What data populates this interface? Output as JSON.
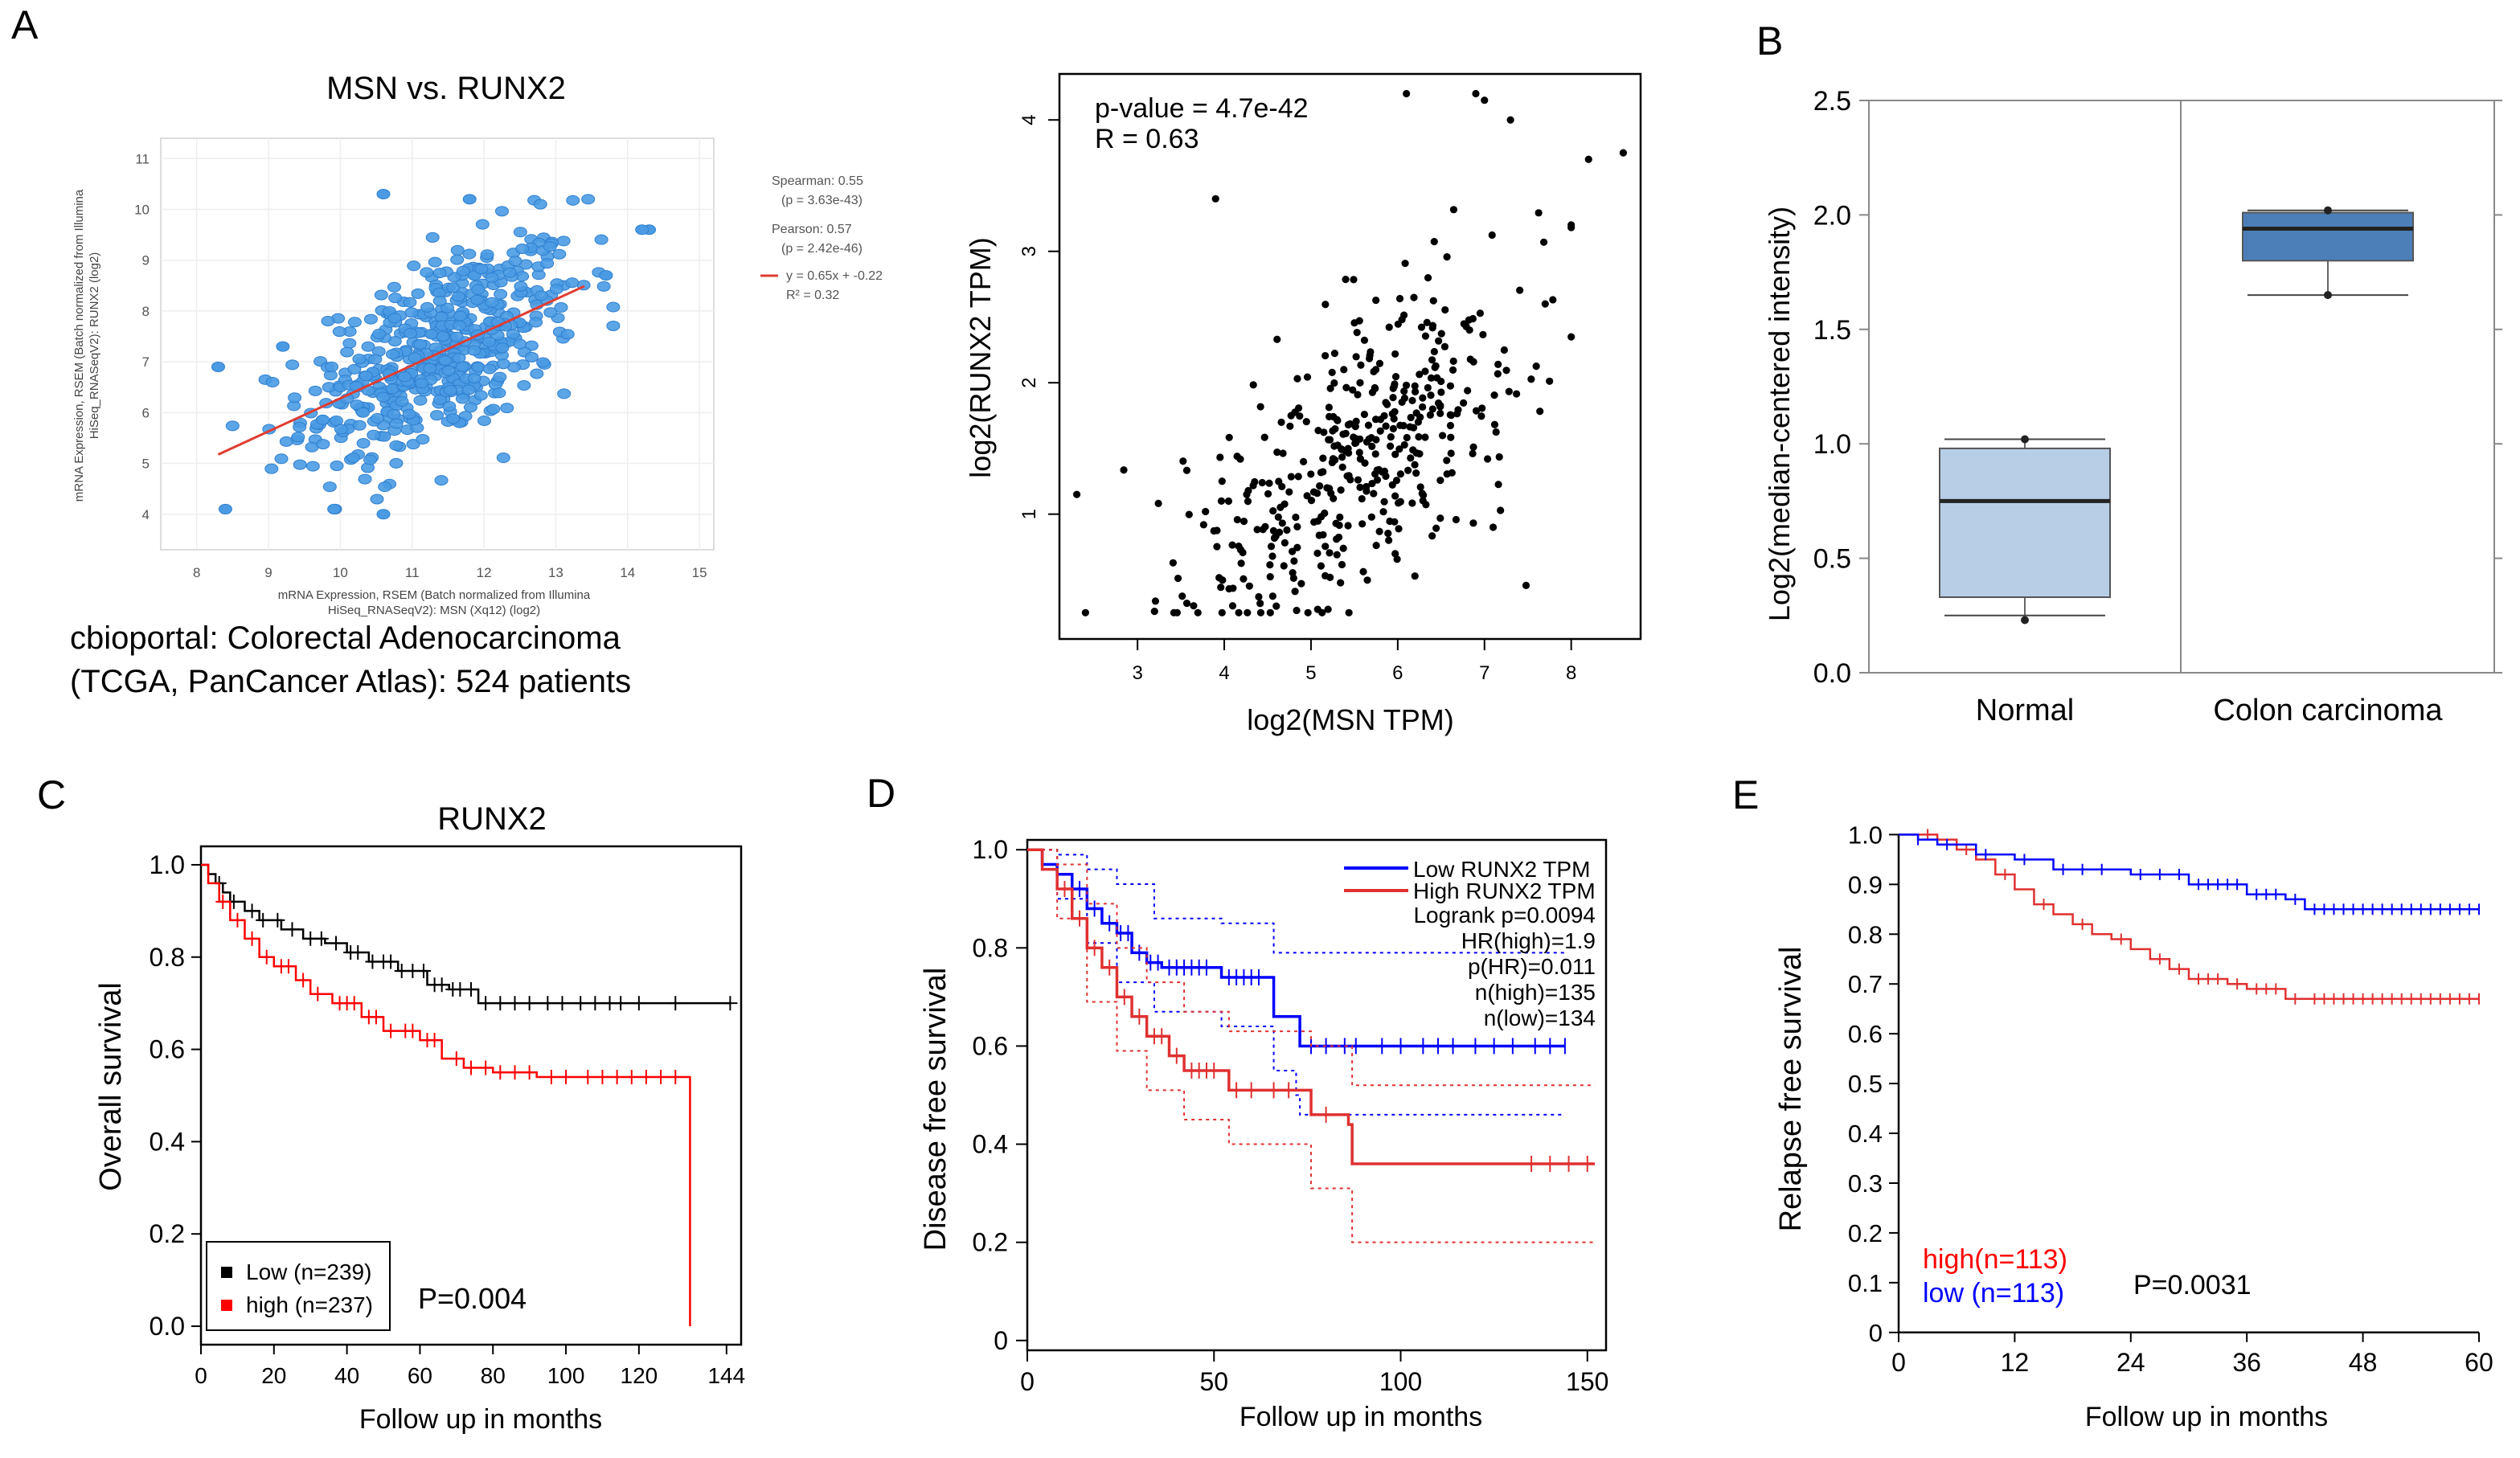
{
  "panel_letters": {
    "A": "A",
    "B": "B",
    "C": "C",
    "D": "D",
    "E": "E"
  },
  "captions": {
    "a1_line1": "cbioportal: Colorectal Adenocarcinoma",
    "a1_line2": "(TCGA, PanCancer Atlas): 524 patients"
  },
  "colors": {
    "cbio_point": "#4a9be3",
    "cbio_fit": "#e03c31",
    "box_normal": "#b7cee6",
    "box_colon": "#4c7fb8",
    "low": "#0000ff",
    "high": "#ff0000",
    "black": "#000000"
  },
  "chart_data": [
    {
      "id": "A1",
      "type": "scatter",
      "title": "MSN vs. RUNX2",
      "xlabel": "mRNA Expression, RSEM (Batch normalized from Illumina HiSeq_RNASeqV2): MSN (Xq12) (log2)",
      "xlabel_lines": [
        "mRNA Expression, RSEM (Batch normalized from Illumina",
        "HiSeq_RNASeqV2): MSN (Xq12) (log2)"
      ],
      "ylabel": "mRNA Expression, RSEM (Batch normalized from Illumina HiSeq_RNASeqV2): RUNX2 (log2)",
      "ylabel_lines": [
        "mRNA Expression, RSEM (Batch normalized from Illumina",
        "HiSeq_RNASeqV2): RUNX2 (log2)"
      ],
      "xlim": [
        7.5,
        15.2
      ],
      "ylim": [
        3.3,
        11.4
      ],
      "xticks": [
        8,
        9,
        10,
        11,
        12,
        13,
        14,
        15
      ],
      "yticks": [
        4,
        5,
        6,
        7,
        8,
        9,
        10,
        11
      ],
      "n_points": 524,
      "regression": {
        "slope": 0.65,
        "intercept": -0.22,
        "x_range": [
          8.3,
          13.4
        ]
      },
      "legend": [
        "Spearman: 0.55",
        "(p = 3.63e-43)",
        "Pearson: 0.57",
        "(p = 2.42e-46)",
        "y = 0.65x + -0.22",
        "R² = 0.32"
      ],
      "highlight_points": [
        [
          8.4,
          4.1
        ],
        [
          8.3,
          6.9
        ],
        [
          10.6,
          10.3
        ],
        [
          11.8,
          10.2
        ],
        [
          14.3,
          9.6
        ],
        [
          14.2,
          9.6
        ],
        [
          10.6,
          4.0
        ],
        [
          13.7,
          8.7
        ],
        [
          9.2,
          7.3
        ]
      ]
    },
    {
      "id": "A2",
      "type": "scatter",
      "title": "",
      "xlabel": "log2(MSN TPM)",
      "ylabel": "log2(RUNX2 TPM)",
      "xlim": [
        2.1,
        8.8
      ],
      "ylim": [
        0.05,
        4.35
      ],
      "xticks": [
        3,
        4,
        5,
        6,
        7,
        8
      ],
      "yticks": [
        1,
        2,
        3,
        4
      ],
      "n_points": 420,
      "annotations": [
        "p-value = 4.7e-42",
        "R = 0.63"
      ],
      "highlight_points": [
        [
          6.1,
          4.2
        ],
        [
          6.9,
          4.2
        ],
        [
          7.0,
          4.15
        ],
        [
          7.3,
          4.0
        ],
        [
          8.6,
          3.75
        ],
        [
          8.2,
          3.7
        ],
        [
          2.4,
          0.25
        ],
        [
          2.3,
          1.15
        ],
        [
          3.9,
          3.4
        ],
        [
          7.7,
          2.6
        ],
        [
          4.6,
          0.3
        ],
        [
          7.1,
          0.9
        ]
      ]
    },
    {
      "id": "B",
      "type": "box",
      "xlabel": "",
      "ylabel": "Log2(median-centered intensity)",
      "ylim": [
        0.0,
        2.5
      ],
      "yticks": [
        "0.0",
        "0.5",
        "1.0",
        "1.5",
        "2.0",
        "2.5"
      ],
      "categories": [
        "Normal",
        "Colon carcinoma"
      ],
      "boxes": [
        {
          "label": "Normal",
          "min": 0.23,
          "q1": 0.33,
          "median": 0.75,
          "q3": 0.98,
          "max": 1.02,
          "whisker_low": 0.25,
          "whisker_high": 1.02
        },
        {
          "label": "Colon carcinoma",
          "min": 1.65,
          "q1": 1.8,
          "median": 1.94,
          "q3": 2.01,
          "max": 2.02,
          "whisker_low": 1.65,
          "whisker_high": 2.02
        }
      ]
    },
    {
      "id": "C",
      "type": "line",
      "title": "RUNX2",
      "xlabel": "Follow up in months",
      "ylabel": "Overall survival",
      "xlim": [
        0,
        148
      ],
      "ylim": [
        -0.04,
        1.04
      ],
      "xticks": [
        "0",
        "20",
        "40",
        "60",
        "80",
        "100",
        "120",
        "144"
      ],
      "yticks": [
        "0.0",
        "0.2",
        "0.4",
        "0.6",
        "0.8",
        "1.0"
      ],
      "pvalue": "P=0.004",
      "legend": [
        "Low (n=239)",
        "high (n=237)"
      ],
      "series": [
        {
          "name": "Low (n=239)",
          "color": "#000000",
          "steps": [
            [
              0,
              1.0
            ],
            [
              2,
              0.98
            ],
            [
              4,
              0.96
            ],
            [
              6,
              0.94
            ],
            [
              8,
              0.92
            ],
            [
              12,
              0.9
            ],
            [
              16,
              0.88
            ],
            [
              22,
              0.86
            ],
            [
              28,
              0.84
            ],
            [
              34,
              0.83
            ],
            [
              40,
              0.81
            ],
            [
              46,
              0.79
            ],
            [
              54,
              0.77
            ],
            [
              62,
              0.74
            ],
            [
              68,
              0.73
            ],
            [
              76,
              0.7
            ],
            [
              145,
              0.7
            ]
          ],
          "censor_x": [
            5,
            9,
            14,
            17,
            21,
            25,
            30,
            33,
            37,
            41,
            43,
            47,
            50,
            52,
            55,
            58,
            61,
            64,
            66,
            69,
            71,
            74,
            78,
            82,
            86,
            90,
            95,
            99,
            104,
            108,
            112,
            115,
            120,
            130,
            145
          ]
        },
        {
          "name": "high (n=237)",
          "color": "#ff0000",
          "steps": [
            [
              0,
              1.0
            ],
            [
              2,
              0.96
            ],
            [
              5,
              0.92
            ],
            [
              8,
              0.88
            ],
            [
              12,
              0.84
            ],
            [
              16,
              0.8
            ],
            [
              20,
              0.78
            ],
            [
              26,
              0.75
            ],
            [
              30,
              0.72
            ],
            [
              36,
              0.7
            ],
            [
              44,
              0.67
            ],
            [
              50,
              0.64
            ],
            [
              60,
              0.62
            ],
            [
              66,
              0.58
            ],
            [
              72,
              0.56
            ],
            [
              80,
              0.55
            ],
            [
              92,
              0.54
            ],
            [
              134,
              0.54
            ],
            [
              134,
              0.0
            ]
          ],
          "censor_x": [
            6,
            10,
            14,
            18,
            22,
            24,
            28,
            32,
            38,
            40,
            42,
            46,
            48,
            52,
            56,
            58,
            62,
            64,
            70,
            74,
            78,
            82,
            86,
            90,
            96,
            100,
            106,
            110,
            114,
            118,
            122,
            126,
            130
          ]
        }
      ]
    },
    {
      "id": "D",
      "type": "line",
      "xlabel": "Follow up in months",
      "ylabel": "Disease free survival",
      "xlim": [
        0,
        155
      ],
      "ylim": [
        -0.02,
        1.02
      ],
      "xticks": [
        "0",
        "50",
        "100",
        "150"
      ],
      "yticks": [
        "0",
        "0.2",
        "0.4",
        "0.6",
        "0.8",
        "1.0"
      ],
      "legend": [
        "Low RUNX2 TPM",
        "High RUNX2 TPM"
      ],
      "stats": [
        "Logrank p=0.0094",
        "HR(high)=1.9",
        "p(HR)=0.011",
        "n(high)=135",
        "n(low)=134"
      ],
      "series": [
        {
          "name": "Low RUNX2 TPM",
          "color": "#0000ff",
          "steps": [
            [
              0,
              1.0
            ],
            [
              4,
              0.97
            ],
            [
              8,
              0.95
            ],
            [
              12,
              0.92
            ],
            [
              16,
              0.88
            ],
            [
              20,
              0.85
            ],
            [
              24,
              0.83
            ],
            [
              28,
              0.79
            ],
            [
              32,
              0.77
            ],
            [
              36,
              0.76
            ],
            [
              50,
              0.76
            ],
            [
              52,
              0.74
            ],
            [
              64,
              0.74
            ],
            [
              66,
              0.66
            ],
            [
              72,
              0.66
            ],
            [
              73,
              0.6
            ],
            [
              144,
              0.6
            ]
          ],
          "censor_x": [
            14,
            18,
            22,
            25,
            27,
            30,
            33,
            35,
            38,
            40,
            42,
            44,
            46,
            48,
            54,
            56,
            58,
            60,
            62,
            76,
            80,
            85,
            88,
            95,
            100,
            106,
            110,
            114,
            120,
            125,
            130,
            136,
            140,
            144
          ],
          "ci_upper": [
            [
              0,
              1.0
            ],
            [
              8,
              0.99
            ],
            [
              16,
              0.96
            ],
            [
              24,
              0.93
            ],
            [
              34,
              0.86
            ],
            [
              52,
              0.85
            ],
            [
              64,
              0.85
            ],
            [
              66,
              0.79
            ],
            [
              144,
              0.79
            ]
          ],
          "ci_lower": [
            [
              0,
              1.0
            ],
            [
              8,
              0.9
            ],
            [
              16,
              0.81
            ],
            [
              24,
              0.73
            ],
            [
              34,
              0.67
            ],
            [
              52,
              0.64
            ],
            [
              64,
              0.64
            ],
            [
              66,
              0.55
            ],
            [
              72,
              0.5
            ],
            [
              73,
              0.46
            ],
            [
              144,
              0.46
            ]
          ]
        },
        {
          "name": "High RUNX2 TPM",
          "color": "#e03030",
          "steps": [
            [
              0,
              1.0
            ],
            [
              4,
              0.96
            ],
            [
              8,
              0.92
            ],
            [
              12,
              0.86
            ],
            [
              16,
              0.8
            ],
            [
              20,
              0.76
            ],
            [
              24,
              0.7
            ],
            [
              28,
              0.66
            ],
            [
              32,
              0.62
            ],
            [
              38,
              0.58
            ],
            [
              42,
              0.55
            ],
            [
              52,
              0.55
            ],
            [
              54,
              0.51
            ],
            [
              72,
              0.51
            ],
            [
              76,
              0.46
            ],
            [
              86,
              0.44
            ],
            [
              87,
              0.36
            ],
            [
              152,
              0.36
            ]
          ],
          "censor_x": [
            10,
            14,
            18,
            22,
            26,
            30,
            34,
            36,
            40,
            44,
            46,
            48,
            50,
            56,
            60,
            66,
            70,
            80,
            135,
            140,
            145,
            150
          ],
          "ci_upper": [
            [
              0,
              1.0
            ],
            [
              8,
              0.97
            ],
            [
              16,
              0.89
            ],
            [
              24,
              0.8
            ],
            [
              32,
              0.73
            ],
            [
              42,
              0.67
            ],
            [
              54,
              0.63
            ],
            [
              76,
              0.6
            ],
            [
              87,
              0.52
            ],
            [
              152,
              0.52
            ]
          ],
          "ci_lower": [
            [
              0,
              1.0
            ],
            [
              8,
              0.86
            ],
            [
              16,
              0.69
            ],
            [
              24,
              0.59
            ],
            [
              32,
              0.51
            ],
            [
              42,
              0.45
            ],
            [
              54,
              0.4
            ],
            [
              76,
              0.31
            ],
            [
              87,
              0.2
            ],
            [
              152,
              0.2
            ]
          ]
        }
      ]
    },
    {
      "id": "E",
      "type": "line",
      "xlabel": "Follow up in months",
      "ylabel": "Relapse free survival",
      "xlim": [
        0,
        61
      ],
      "ylim": [
        -0.01,
        1.02
      ],
      "xticks": [
        "0",
        "12",
        "24",
        "36",
        "48",
        "60"
      ],
      "yticks": [
        "0",
        "0.1",
        "0.2",
        "0.3",
        "0.4",
        "0.5",
        "0.6",
        "0.7",
        "0.8",
        "0.9",
        "1.0"
      ],
      "pvalue": "P=0.0031",
      "legend": [
        "high(n=113)",
        "low (n=113)"
      ],
      "series": [
        {
          "name": "high(n=113)",
          "color": "#e03030",
          "steps": [
            [
              0,
              1.0
            ],
            [
              4,
              0.99
            ],
            [
              6,
              0.97
            ],
            [
              8,
              0.95
            ],
            [
              10,
              0.92
            ],
            [
              12,
              0.89
            ],
            [
              14,
              0.86
            ],
            [
              16,
              0.84
            ],
            [
              18,
              0.82
            ],
            [
              20,
              0.8
            ],
            [
              22,
              0.79
            ],
            [
              24,
              0.77
            ],
            [
              26,
              0.75
            ],
            [
              28,
              0.73
            ],
            [
              30,
              0.71
            ],
            [
              34,
              0.7
            ],
            [
              36,
              0.69
            ],
            [
              40,
              0.67
            ],
            [
              60,
              0.67
            ]
          ],
          "censor_x": [
            3,
            7,
            11,
            15,
            19,
            23,
            27,
            29,
            31,
            32,
            33,
            35,
            37,
            38,
            39,
            41,
            43,
            44,
            45,
            46,
            47,
            48,
            49,
            50,
            51,
            52,
            53,
            54,
            55,
            56,
            57,
            58,
            59,
            60
          ]
        },
        {
          "name": "low (n=113)",
          "color": "#0000ff",
          "steps": [
            [
              0,
              1.0
            ],
            [
              2,
              0.99
            ],
            [
              4,
              0.98
            ],
            [
              8,
              0.96
            ],
            [
              12,
              0.95
            ],
            [
              16,
              0.93
            ],
            [
              24,
              0.92
            ],
            [
              30,
              0.9
            ],
            [
              36,
              0.88
            ],
            [
              40,
              0.87
            ],
            [
              42,
              0.85
            ],
            [
              60,
              0.85
            ]
          ],
          "censor_x": [
            2,
            5,
            9,
            13,
            17,
            19,
            21,
            25,
            27,
            29,
            31,
            32,
            33,
            34,
            35,
            37,
            38,
            39,
            41,
            43,
            44,
            45,
            46,
            47,
            48,
            49,
            50,
            51,
            52,
            53,
            54,
            55,
            56,
            57,
            58,
            59,
            60
          ]
        }
      ]
    }
  ]
}
